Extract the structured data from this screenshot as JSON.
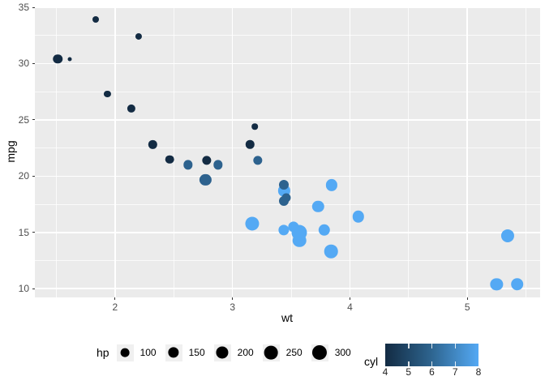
{
  "chart_data": {
    "type": "scatter",
    "title": "",
    "xlabel": "wt",
    "ylabel": "mpg",
    "xlim": [
      1.317,
      5.62
    ],
    "ylim": [
      9.225,
      35.075
    ],
    "x_major_ticks": [
      2,
      3,
      4,
      5
    ],
    "y_major_ticks": [
      10,
      15,
      20,
      25,
      30,
      35
    ],
    "x_minor_ticks": [
      1.5,
      2.5,
      3.5,
      4.5,
      5.5
    ],
    "y_minor_ticks": [
      12.5,
      17.5,
      22.5,
      27.5,
      32.5
    ],
    "panel_bg": "#EBEBEB",
    "grid_color": "#FFFFFF",
    "size_variable": "hp",
    "size_range_hp": [
      52,
      335
    ],
    "color_variable": "cyl",
    "color_map": {
      "c4": "#132B43",
      "c6": "#2D628E",
      "c8": "#54A9F4"
    },
    "points": [
      {
        "wt": 2.62,
        "mpg": 21.0,
        "hp": 110,
        "cyl": 6
      },
      {
        "wt": 2.875,
        "mpg": 21.0,
        "hp": 110,
        "cyl": 6
      },
      {
        "wt": 2.32,
        "mpg": 22.8,
        "hp": 93,
        "cyl": 4
      },
      {
        "wt": 3.215,
        "mpg": 21.4,
        "hp": 110,
        "cyl": 6
      },
      {
        "wt": 3.44,
        "mpg": 18.7,
        "hp": 175,
        "cyl": 8
      },
      {
        "wt": 3.46,
        "mpg": 18.1,
        "hp": 105,
        "cyl": 6
      },
      {
        "wt": 3.57,
        "mpg": 14.3,
        "hp": 245,
        "cyl": 8
      },
      {
        "wt": 3.19,
        "mpg": 24.4,
        "hp": 62,
        "cyl": 4
      },
      {
        "wt": 3.15,
        "mpg": 22.8,
        "hp": 95,
        "cyl": 4
      },
      {
        "wt": 3.44,
        "mpg": 19.2,
        "hp": 123,
        "cyl": 6
      },
      {
        "wt": 3.44,
        "mpg": 17.8,
        "hp": 123,
        "cyl": 6
      },
      {
        "wt": 4.07,
        "mpg": 16.4,
        "hp": 180,
        "cyl": 8
      },
      {
        "wt": 3.73,
        "mpg": 17.3,
        "hp": 180,
        "cyl": 8
      },
      {
        "wt": 3.78,
        "mpg": 15.2,
        "hp": 180,
        "cyl": 8
      },
      {
        "wt": 5.25,
        "mpg": 10.4,
        "hp": 205,
        "cyl": 8
      },
      {
        "wt": 5.424,
        "mpg": 10.4,
        "hp": 215,
        "cyl": 8
      },
      {
        "wt": 5.345,
        "mpg": 14.7,
        "hp": 230,
        "cyl": 8
      },
      {
        "wt": 2.2,
        "mpg": 32.4,
        "hp": 66,
        "cyl": 4
      },
      {
        "wt": 1.615,
        "mpg": 30.4,
        "hp": 52,
        "cyl": 4
      },
      {
        "wt": 1.835,
        "mpg": 33.9,
        "hp": 65,
        "cyl": 4
      },
      {
        "wt": 2.465,
        "mpg": 21.5,
        "hp": 97,
        "cyl": 4
      },
      {
        "wt": 3.52,
        "mpg": 15.5,
        "hp": 150,
        "cyl": 8
      },
      {
        "wt": 3.435,
        "mpg": 15.2,
        "hp": 150,
        "cyl": 8
      },
      {
        "wt": 3.84,
        "mpg": 13.3,
        "hp": 245,
        "cyl": 8
      },
      {
        "wt": 3.845,
        "mpg": 19.2,
        "hp": 175,
        "cyl": 8
      },
      {
        "wt": 1.935,
        "mpg": 27.3,
        "hp": 66,
        "cyl": 4
      },
      {
        "wt": 2.14,
        "mpg": 26.0,
        "hp": 91,
        "cyl": 4
      },
      {
        "wt": 1.513,
        "mpg": 30.4,
        "hp": 113,
        "cyl": 4
      },
      {
        "wt": 3.17,
        "mpg": 15.8,
        "hp": 264,
        "cyl": 8
      },
      {
        "wt": 2.77,
        "mpg": 19.7,
        "hp": 175,
        "cyl": 6
      },
      {
        "wt": 3.57,
        "mpg": 15.0,
        "hp": 335,
        "cyl": 8
      },
      {
        "wt": 2.78,
        "mpg": 21.4,
        "hp": 109,
        "cyl": 4
      }
    ]
  },
  "legends": {
    "hp": {
      "title": "hp",
      "breaks": [
        "100",
        "150",
        "200",
        "250",
        "300"
      ],
      "break_values": [
        100,
        150,
        200,
        250,
        300
      ],
      "key_fill": "#F0F0F0",
      "key_point_color": "#000000"
    },
    "cyl": {
      "title": "cyl",
      "breaks": [
        "4",
        "5",
        "6",
        "7",
        "8"
      ],
      "gradient_low": "#132B43",
      "gradient_mid": "#2E6590",
      "gradient_high": "#54A9F4"
    }
  },
  "axis_style": {
    "text_color": "#4D4D4D",
    "tick_color": "#333333",
    "title_color": "#000000"
  }
}
